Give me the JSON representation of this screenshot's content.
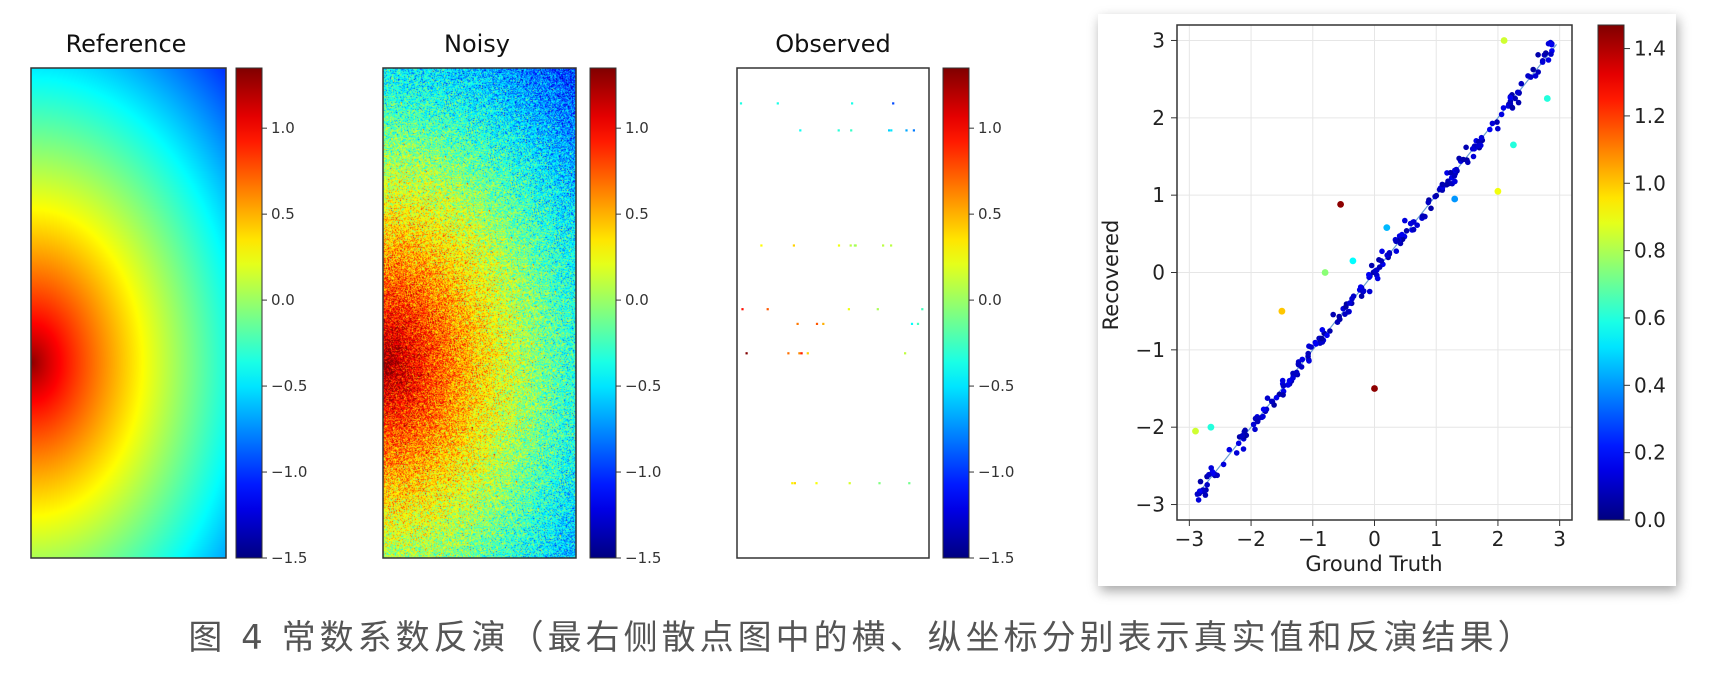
{
  "caption": "图 4 常数系数反演（最右侧散点图中的横、纵坐标分别表示真实值和反演结果）",
  "colormap": "jet",
  "chart_data": [
    {
      "type": "heatmap",
      "title": "Reference",
      "colorbar": {
        "ticks": [
          "1.0",
          "0.5",
          "0.0",
          "−0.5",
          "−1.0",
          "−1.5"
        ],
        "range": [
          -1.5,
          1.35
        ]
      },
      "field": "smooth radial field, maximum about 1.3 at left-middle edge, minimum about -1.5 at top-right corner"
    },
    {
      "type": "heatmap",
      "title": "Noisy",
      "colorbar": {
        "ticks": [
          "1.0",
          "0.5",
          "0.0",
          "−0.5",
          "−1.0",
          "−1.5"
        ],
        "range": [
          -1.5,
          1.35
        ]
      },
      "field": "reference field with additive per-pixel noise"
    },
    {
      "type": "heatmap",
      "title": "Observed",
      "colorbar": {
        "ticks": [
          "1.0",
          "0.5",
          "0.0",
          "−0.5",
          "−1.0",
          "−1.5"
        ],
        "range": [
          -1.5,
          1.35
        ]
      },
      "field": "sparse observations along a few horizontal rows, rest blank"
    },
    {
      "type": "scatter",
      "xlabel": "Ground Truth",
      "ylabel": "Recovered",
      "xlim": [
        -3.2,
        3.2
      ],
      "ylim": [
        -3.2,
        3.2
      ],
      "xticks": [
        "−3",
        "−2",
        "−1",
        "0",
        "1",
        "2",
        "3"
      ],
      "yticks": [
        "−3",
        "−2",
        "−1",
        "0",
        "1",
        "2",
        "3"
      ],
      "grid": true,
      "reference_line": "y = x",
      "colorbar": {
        "ticks": [
          "0.0",
          "0.2",
          "0.4",
          "0.6",
          "0.8",
          "1.0",
          "1.2",
          "1.4"
        ],
        "range": [
          0,
          1.47
        ]
      },
      "outliers": [
        {
          "x": -2.9,
          "y": -2.05,
          "c": 0.85
        },
        {
          "x": -2.65,
          "y": -2.0,
          "c": 0.6
        },
        {
          "x": -1.5,
          "y": -0.5,
          "c": 1.0
        },
        {
          "x": -0.8,
          "y": 0.0,
          "c": 0.75
        },
        {
          "x": -0.55,
          "y": 0.88,
          "c": 1.45
        },
        {
          "x": -0.35,
          "y": 0.15,
          "c": 0.55
        },
        {
          "x": 0.0,
          "y": -1.5,
          "c": 1.45
        },
        {
          "x": 0.2,
          "y": 0.58,
          "c": 0.45
        },
        {
          "x": 1.3,
          "y": 0.95,
          "c": 0.4
        },
        {
          "x": 2.0,
          "y": 1.05,
          "c": 0.9
        },
        {
          "x": 2.1,
          "y": 3.0,
          "c": 0.85
        },
        {
          "x": 2.25,
          "y": 1.65,
          "c": 0.6
        },
        {
          "x": 2.8,
          "y": 2.25,
          "c": 0.6
        }
      ],
      "main_series": {
        "range": [
          -2.9,
          2.95
        ],
        "count": 230,
        "scatter_sd": 0.06,
        "c": 0.05
      }
    }
  ]
}
